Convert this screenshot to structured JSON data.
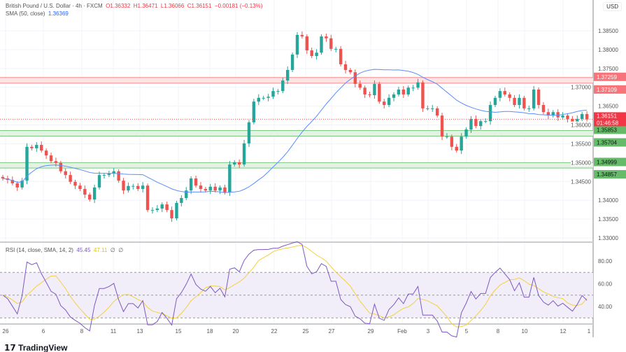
{
  "header": {
    "symbol": "British Pound / U.S. Dollar · 4h · FXCM",
    "open": "O1.36332",
    "high": "H1.36471",
    "low": "L1.36066",
    "close": "C1.36151",
    "change": "−0.00181 (−0.13%)",
    "sma_label": "SMA (50, close)",
    "sma_value": "1.36369"
  },
  "rsi_header": {
    "label": "RSI (14, close, SMA, 14, 2)",
    "rsi": "45.45",
    "rsi_ma": "47.11",
    "extra1": "∅",
    "extra2": "∅"
  },
  "currency": "USD",
  "logo": "TradingView",
  "colors": {
    "up": "#26a69a",
    "down": "#ef5350",
    "sma": "#5b8cff",
    "rsi": "#7e57c2",
    "rsi_ma": "#f4d03f",
    "resistance": "#f28b8b",
    "support": "#81c784"
  },
  "chart_data": {
    "type": "candlestick",
    "ylim": [
      1.33,
      1.3875
    ],
    "price_ticks": [
      "1.38500",
      "1.38000",
      "1.37500",
      "1.37000",
      "1.36500",
      "1.36000",
      "1.35500",
      "1.35000",
      "1.34500",
      "1.34000",
      "1.33500",
      "1.33000"
    ],
    "x_ticks": [
      "26",
      "6",
      "8",
      "11",
      "13",
      "15",
      "18",
      "20",
      "22",
      "25",
      "27",
      "29",
      "Feb",
      "3",
      "5",
      "8",
      "10",
      "12",
      "1"
    ],
    "close": [
      1.3458,
      1.3454,
      1.3445,
      1.3434,
      1.3452,
      1.3542,
      1.3538,
      1.3547,
      1.3532,
      1.3519,
      1.3504,
      1.3499,
      1.3477,
      1.3467,
      1.3449,
      1.3439,
      1.343,
      1.3415,
      1.3402,
      1.3434,
      1.3467,
      1.3467,
      1.3471,
      1.3477,
      1.3452,
      1.3426,
      1.3438,
      1.3438,
      1.343,
      1.3439,
      1.3374,
      1.3374,
      1.3378,
      1.3389,
      1.3374,
      1.3352,
      1.3393,
      1.3406,
      1.3426,
      1.3458,
      1.3439,
      1.343,
      1.3426,
      1.3436,
      1.3426,
      1.3434,
      1.3421,
      1.3495,
      1.3501,
      1.3495,
      1.3551,
      1.3607,
      1.3662,
      1.3672,
      1.3672,
      1.3675,
      1.369,
      1.369,
      1.3718,
      1.3746,
      1.3787,
      1.3839,
      1.3835,
      1.3798,
      1.3783,
      1.3792,
      1.3835,
      1.383,
      1.3802,
      1.3802,
      1.3761,
      1.3746,
      1.374,
      1.3709,
      1.3699,
      1.3681,
      1.3679,
      1.3709,
      1.3662,
      1.3653,
      1.3672,
      1.3681,
      1.3694,
      1.3681,
      1.3699,
      1.3699,
      1.3713,
      1.3644,
      1.3644,
      1.3644,
      1.3625,
      1.3569,
      1.3569,
      1.3542,
      1.3532,
      1.3569,
      1.3588,
      1.3616,
      1.3597,
      1.361,
      1.361,
      1.3653,
      1.3672,
      1.369,
      1.3681,
      1.3672,
      1.3653,
      1.3672,
      1.3644,
      1.3644,
      1.3694,
      1.3653,
      1.3634,
      1.3625,
      1.3634,
      1.362,
      1.3625,
      1.3616,
      1.3607,
      1.3616,
      1.3629,
      1.36151
    ],
    "sma_period": 50,
    "sma_last": 1.36369,
    "levels": [
      {
        "kind": "resistance",
        "top": 1.37259,
        "bottom": 1.37109,
        "top_label": "1.37259",
        "bottom_label": "1.37109"
      },
      {
        "kind": "support",
        "top": 1.35853,
        "bottom": 1.35704,
        "top_label": "1.35853",
        "bottom_label": "1.35704"
      },
      {
        "kind": "support",
        "top": 1.34999,
        "bottom": 1.34857,
        "top_label": "1.34999",
        "bottom_label": "1.34857"
      }
    ],
    "last_price_label": "1.36151",
    "countdown": "01:46:58",
    "rsi": {
      "period": 14,
      "ticks": [
        "80.00",
        "60.00",
        "40.00"
      ],
      "overbought": 70,
      "middle": 50,
      "oversold": 30,
      "last": 45.45,
      "ma_last": 47.11
    }
  }
}
